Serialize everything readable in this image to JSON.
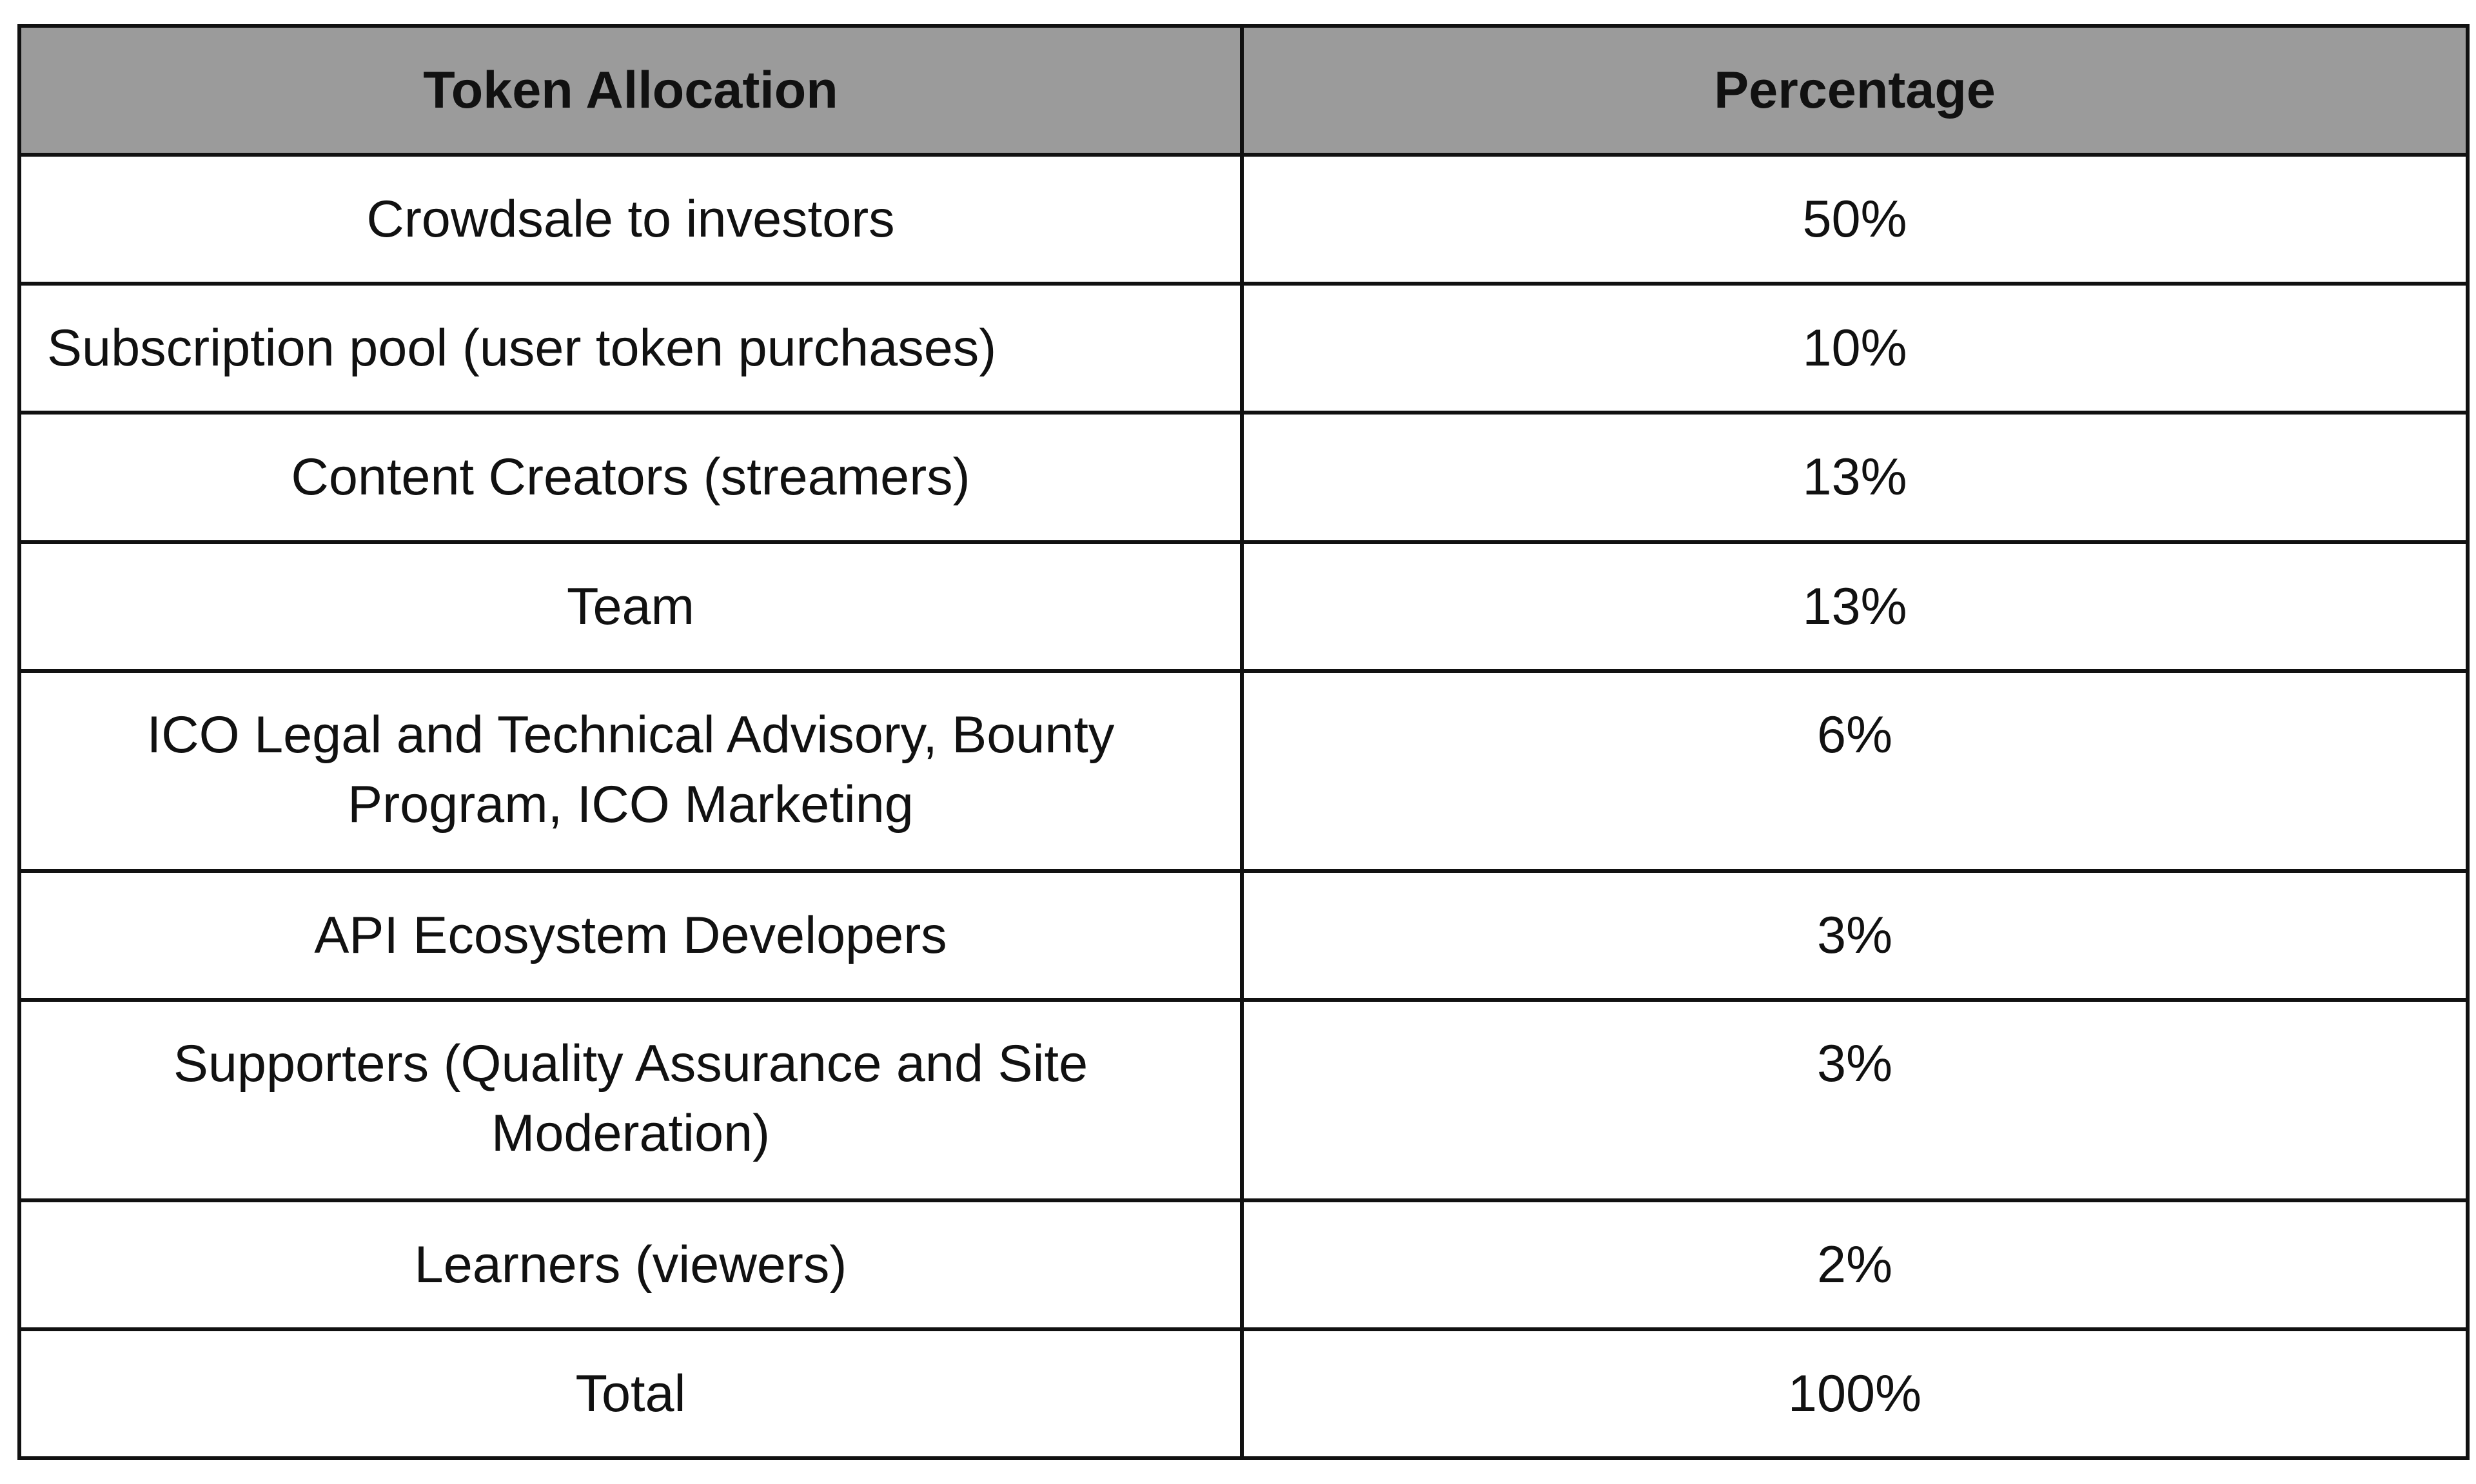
{
  "table": {
    "headers": [
      "Token Allocation",
      "Percentage"
    ],
    "rows": [
      {
        "allocation": "Crowdsale to investors",
        "percentage": "50%"
      },
      {
        "allocation": "Subscription pool  (user token purchases)",
        "percentage": "10%"
      },
      {
        "allocation": "Content Creators (streamers)",
        "percentage": "13%"
      },
      {
        "allocation": "Team",
        "percentage": "13%"
      },
      {
        "allocation": "ICO Legal and Technical Advisory, Bounty Program, ICO Marketing",
        "percentage": "6%"
      },
      {
        "allocation": "API Ecosystem Developers",
        "percentage": "3%"
      },
      {
        "allocation": "Supporters (Quality Assurance and Site Moderation)",
        "percentage": "3%"
      },
      {
        "allocation": "Learners (viewers)",
        "percentage": "2%"
      },
      {
        "allocation": "Total",
        "percentage": "100%"
      }
    ]
  },
  "colors": {
    "header_background": "#9b9b9b",
    "border": "#111111",
    "text": "#111111",
    "cell_background": "#ffffff"
  }
}
